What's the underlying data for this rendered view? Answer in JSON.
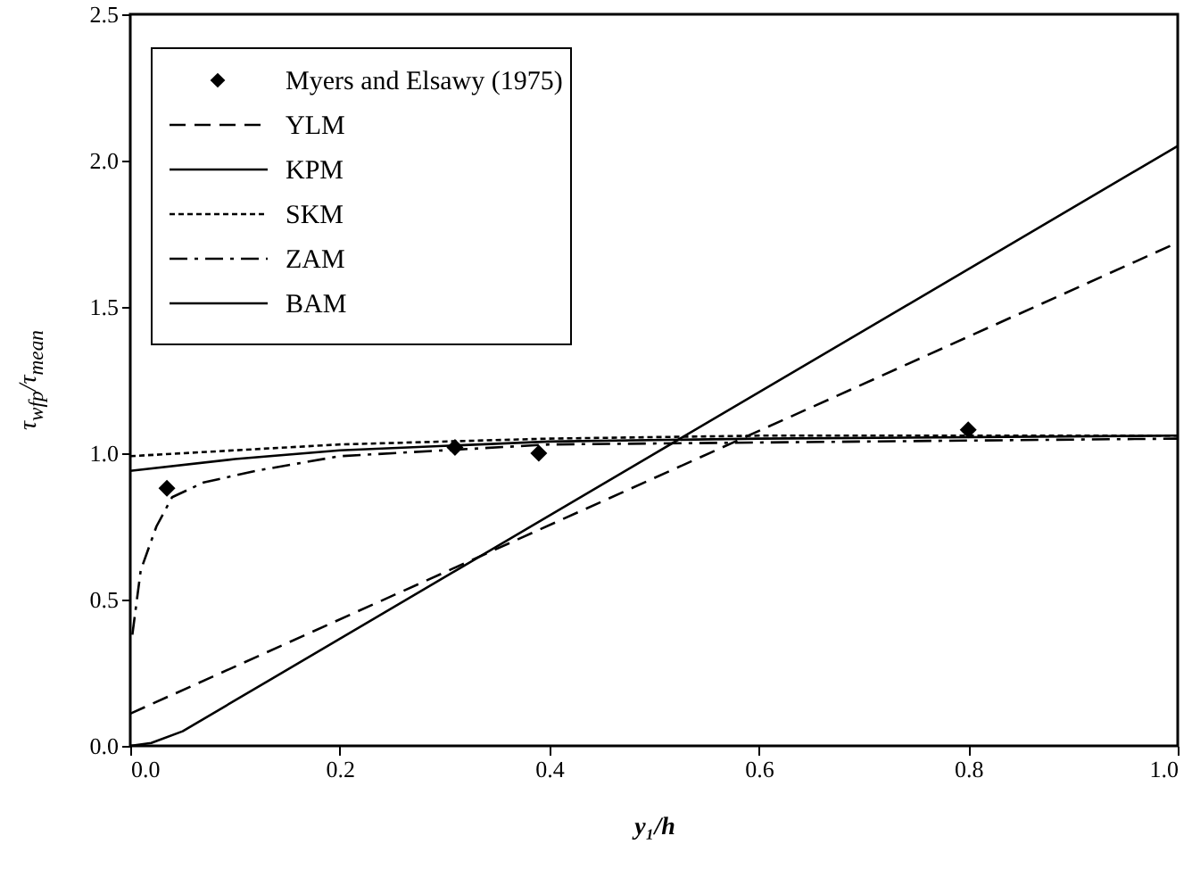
{
  "chart_data": {
    "type": "line",
    "xlabel": "y₁/h",
    "ylabel": "τ$_{wfp}$/τ$_{mean}$",
    "xlim": [
      0,
      1
    ],
    "ylim": [
      0,
      2.5
    ],
    "xticks": [
      {
        "value": 0,
        "label": "0.0"
      },
      {
        "value": 0.2,
        "label": "0.2"
      },
      {
        "value": 0.4,
        "label": "0.4"
      },
      {
        "value": 0.6,
        "label": "0.6"
      },
      {
        "value": 0.8,
        "label": "0.8"
      },
      {
        "value": 1,
        "label": "1.0"
      }
    ],
    "yticks": [
      {
        "value": 0,
        "label": "0.0"
      },
      {
        "value": 0.5,
        "label": "0.5"
      },
      {
        "value": 1,
        "label": "1.0"
      },
      {
        "value": 1.5,
        "label": "1.5"
      },
      {
        "value": 2,
        "label": "2.0"
      },
      {
        "value": 2.5,
        "label": "2.5"
      }
    ],
    "grid": false,
    "legend": "top left",
    "series": [
      {
        "name": "Myers and Elsawy (1975)",
        "type": "scatter",
        "marker": "diamond",
        "color": "#000000",
        "x": [
          0.035,
          0.31,
          0.39,
          0.8
        ],
        "values": [
          0.88,
          1.02,
          1.0,
          1.08
        ]
      },
      {
        "name": "YLM",
        "color": "#000000",
        "line_style": "dashed",
        "x": [
          0,
          1
        ],
        "values": [
          0.11,
          1.72
        ]
      },
      {
        "name": "KPM",
        "color": "#000000",
        "line_style": "solid",
        "x": [
          0,
          0.02,
          0.05,
          1
        ],
        "values": [
          0,
          0.01,
          0.05,
          2.05
        ]
      },
      {
        "name": "SKM",
        "color": "#000000",
        "line_style": "dotted",
        "x": [
          0,
          0.1,
          0.2,
          0.4,
          0.6,
          1
        ],
        "values": [
          0.99,
          1.01,
          1.03,
          1.05,
          1.06,
          1.06
        ]
      },
      {
        "name": "ZAM",
        "color": "#000000",
        "line_style": "dashdot",
        "x": [
          0.002,
          0.01,
          0.025,
          0.04,
          0.07,
          0.12,
          0.2,
          0.4,
          0.7,
          1
        ],
        "values": [
          0.38,
          0.6,
          0.75,
          0.85,
          0.9,
          0.94,
          0.99,
          1.03,
          1.04,
          1.05
        ]
      },
      {
        "name": "BAM",
        "color": "#000000",
        "line_style": "solid",
        "x": [
          0,
          0.1,
          0.2,
          0.4,
          0.6,
          1
        ],
        "values": [
          0.94,
          0.98,
          1.01,
          1.04,
          1.05,
          1.06
        ]
      }
    ]
  }
}
